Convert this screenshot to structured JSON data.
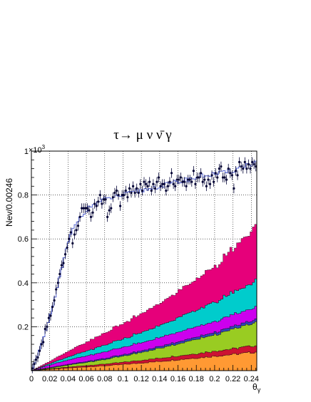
{
  "chart_data": {
    "type": "area",
    "title": "τ→ μ ν ν̄ γ",
    "xlabel": "θ",
    "xlabel_subscript": "γ",
    "ylabel": "Nev/0.00246",
    "y_multiplier_label": "×10",
    "y_multiplier_exponent": "3",
    "xlim": [
      0,
      0.246
    ],
    "ylim": [
      0,
      1.0
    ],
    "grid": true,
    "x_ticks": [
      {
        "value": 0,
        "label": "0"
      },
      {
        "value": 0.02,
        "label": "0.02"
      },
      {
        "value": 0.04,
        "label": "0.04"
      },
      {
        "value": 0.06,
        "label": "0.06"
      },
      {
        "value": 0.08,
        "label": "0.08"
      },
      {
        "value": 0.1,
        "label": "0.1"
      },
      {
        "value": 0.12,
        "label": "0.12"
      },
      {
        "value": 0.14,
        "label": "0.14"
      },
      {
        "value": 0.16,
        "label": "0.16"
      },
      {
        "value": 0.18,
        "label": "0.18"
      },
      {
        "value": 0.2,
        "label": "0.2"
      },
      {
        "value": 0.22,
        "label": "0.22"
      },
      {
        "value": 0.24,
        "label": "0.24"
      }
    ],
    "y_ticks": [
      {
        "value": 0.2,
        "label": "0.2"
      },
      {
        "value": 0.4,
        "label": "0.4"
      },
      {
        "value": 0.6,
        "label": "0.6"
      },
      {
        "value": 0.8,
        "label": "0.8"
      },
      {
        "value": 1.0,
        "label": "1"
      }
    ],
    "x": [
      0.0,
      0.02,
      0.04,
      0.06,
      0.08,
      0.1,
      0.12,
      0.14,
      0.16,
      0.18,
      0.2,
      0.22,
      0.246
    ],
    "stack": [
      {
        "color": "#ff9933",
        "values": [
          0.0,
          0.006,
          0.012,
          0.017,
          0.022,
          0.028,
          0.035,
          0.042,
          0.05,
          0.058,
          0.066,
          0.074,
          0.085
        ]
      },
      {
        "color": "#cc1133",
        "values": [
          0.0,
          0.002,
          0.004,
          0.006,
          0.008,
          0.01,
          0.012,
          0.015,
          0.017,
          0.02,
          0.023,
          0.026,
          0.03
        ]
      },
      {
        "color": "#99cc22",
        "values": [
          0.0,
          0.004,
          0.009,
          0.015,
          0.021,
          0.028,
          0.036,
          0.045,
          0.055,
          0.065,
          0.075,
          0.088,
          0.105
        ]
      },
      {
        "color": "#3344bb",
        "values": [
          0.0,
          0.002,
          0.003,
          0.004,
          0.005,
          0.006,
          0.007,
          0.008,
          0.009,
          0.01,
          0.011,
          0.012,
          0.013
        ]
      },
      {
        "color": "#cc00ee",
        "values": [
          0.0,
          0.012,
          0.02,
          0.025,
          0.03,
          0.034,
          0.038,
          0.041,
          0.044,
          0.047,
          0.05,
          0.053,
          0.057
        ]
      },
      {
        "color": "#00cccc",
        "values": [
          0.0,
          0.006,
          0.014,
          0.022,
          0.03,
          0.038,
          0.046,
          0.055,
          0.065,
          0.076,
          0.088,
          0.102,
          0.12
        ]
      },
      {
        "color": "#e6007a",
        "values": [
          0.0,
          0.01,
          0.025,
          0.04,
          0.055,
          0.07,
          0.085,
          0.1,
          0.12,
          0.14,
          0.165,
          0.195,
          0.25
        ]
      }
    ],
    "mc_line": {
      "color": "#4455cc",
      "x": [
        0.0,
        0.005,
        0.01,
        0.015,
        0.02,
        0.025,
        0.03,
        0.035,
        0.04,
        0.045,
        0.05,
        0.055,
        0.06,
        0.065,
        0.07,
        0.08,
        0.09,
        0.1,
        0.11,
        0.12,
        0.13,
        0.14,
        0.15,
        0.16,
        0.17,
        0.18,
        0.19,
        0.2,
        0.21,
        0.22,
        0.23,
        0.246
      ],
      "y": [
        0.0,
        0.05,
        0.11,
        0.17,
        0.24,
        0.32,
        0.41,
        0.5,
        0.58,
        0.64,
        0.68,
        0.71,
        0.73,
        0.75,
        0.76,
        0.78,
        0.79,
        0.8,
        0.81,
        0.82,
        0.83,
        0.84,
        0.85,
        0.86,
        0.87,
        0.88,
        0.89,
        0.895,
        0.9,
        0.91,
        0.93,
        0.95
      ]
    },
    "data_points": {
      "color": "#000033",
      "x": [
        0.001,
        0.003,
        0.005,
        0.007,
        0.009,
        0.011,
        0.013,
        0.015,
        0.017,
        0.019,
        0.021,
        0.023,
        0.025,
        0.027,
        0.029,
        0.031,
        0.033,
        0.035,
        0.037,
        0.039,
        0.041,
        0.043,
        0.045,
        0.047,
        0.049,
        0.051,
        0.053,
        0.055,
        0.057,
        0.059,
        0.061,
        0.063,
        0.065,
        0.067,
        0.069,
        0.071,
        0.073,
        0.075,
        0.077,
        0.079,
        0.081,
        0.083,
        0.085,
        0.087,
        0.089,
        0.091,
        0.093,
        0.095,
        0.097,
        0.099,
        0.101,
        0.103,
        0.105,
        0.107,
        0.109,
        0.111,
        0.113,
        0.115,
        0.117,
        0.119,
        0.121,
        0.123,
        0.125,
        0.127,
        0.129,
        0.131,
        0.133,
        0.135,
        0.137,
        0.139,
        0.141,
        0.143,
        0.145,
        0.147,
        0.149,
        0.151,
        0.153,
        0.155,
        0.157,
        0.159,
        0.161,
        0.163,
        0.165,
        0.167,
        0.169,
        0.171,
        0.173,
        0.175,
        0.177,
        0.179,
        0.181,
        0.183,
        0.185,
        0.187,
        0.189,
        0.191,
        0.193,
        0.195,
        0.197,
        0.199,
        0.201,
        0.203,
        0.205,
        0.207,
        0.209,
        0.211,
        0.213,
        0.215,
        0.217,
        0.219,
        0.221,
        0.223,
        0.225,
        0.227,
        0.229,
        0.231,
        0.233,
        0.235,
        0.237,
        0.239,
        0.241,
        0.243,
        0.245
      ],
      "y": [
        0.01,
        0.03,
        0.05,
        0.06,
        0.09,
        0.12,
        0.13,
        0.19,
        0.2,
        0.24,
        0.25,
        0.29,
        0.32,
        0.37,
        0.4,
        0.44,
        0.48,
        0.49,
        0.53,
        0.56,
        0.6,
        0.63,
        0.58,
        0.62,
        0.64,
        0.66,
        0.7,
        0.74,
        0.74,
        0.74,
        0.74,
        0.73,
        0.7,
        0.72,
        0.76,
        0.75,
        0.77,
        0.8,
        0.76,
        0.78,
        0.78,
        0.7,
        0.73,
        0.74,
        0.79,
        0.81,
        0.82,
        0.8,
        0.75,
        0.8,
        0.8,
        0.82,
        0.79,
        0.83,
        0.81,
        0.84,
        0.81,
        0.83,
        0.81,
        0.85,
        0.82,
        0.86,
        0.85,
        0.84,
        0.86,
        0.82,
        0.85,
        0.83,
        0.86,
        0.88,
        0.84,
        0.85,
        0.85,
        0.82,
        0.84,
        0.86,
        0.9,
        0.85,
        0.84,
        0.87,
        0.87,
        0.88,
        0.86,
        0.86,
        0.84,
        0.87,
        0.87,
        0.86,
        0.91,
        0.85,
        0.88,
        0.88,
        0.9,
        0.86,
        0.87,
        0.84,
        0.87,
        0.85,
        0.89,
        0.86,
        0.9,
        0.88,
        0.92,
        0.93,
        0.88,
        0.88,
        0.87,
        0.92,
        0.9,
        0.89,
        0.83,
        0.91,
        0.89,
        0.95,
        0.93,
        0.92,
        0.95,
        0.92,
        0.94,
        0.92,
        0.95,
        0.94,
        0.93
      ]
    }
  }
}
